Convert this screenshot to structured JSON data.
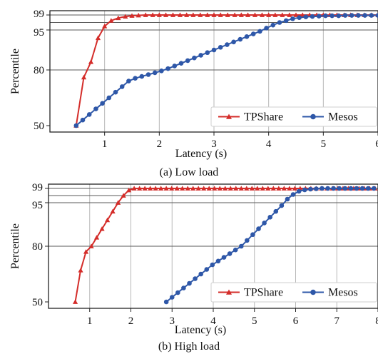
{
  "chart_data": [
    {
      "type": "line",
      "caption": "(a) Low load",
      "xlabel": "Latency (s)",
      "ylabel": "Percentile",
      "xlim": [
        0.0,
        6.0
      ],
      "ylim": [
        48,
        100
      ],
      "xticks": [
        1,
        2,
        3,
        4,
        5,
        6
      ],
      "yticks": [
        50,
        80,
        95,
        99
      ],
      "ref_lines": [
        99,
        97,
        95,
        80
      ],
      "grid": true,
      "legend_position": "lower right",
      "series": [
        {
          "name": "TPShare",
          "color": "#d42d2a",
          "marker": "triangle",
          "x": [
            0.48,
            0.62,
            0.75,
            0.88,
            1.0,
            1.12,
            1.25,
            1.38,
            1.5,
            1.62,
            1.75,
            1.88,
            2.0,
            2.12,
            2.25,
            2.38,
            2.5,
            2.62,
            2.75,
            2.88,
            3.0,
            3.12,
            3.25,
            3.38,
            3.5,
            3.62,
            3.75,
            3.88,
            4.0,
            4.12,
            4.25,
            4.38,
            4.5,
            4.62,
            4.75,
            4.88,
            5.0,
            5.12,
            5.25,
            5.38,
            5.5,
            5.62,
            5.75,
            5.88,
            6.0
          ],
          "y": [
            50,
            76,
            83,
            92,
            96,
            97.5,
            98.2,
            98.6,
            98.8,
            98.9,
            99,
            99,
            99,
            99,
            99,
            99,
            99,
            99,
            99,
            99,
            99,
            99,
            99,
            99,
            99,
            99,
            99,
            99,
            99,
            99,
            99,
            99,
            99,
            99,
            99,
            99,
            99,
            99,
            99,
            99,
            99,
            99,
            99,
            99,
            99
          ]
        },
        {
          "name": "Mesos",
          "color": "#2e57a8",
          "marker": "circle",
          "x": [
            0.48,
            0.6,
            0.72,
            0.84,
            0.96,
            1.08,
            1.2,
            1.32,
            1.44,
            1.56,
            1.68,
            1.8,
            1.92,
            2.04,
            2.16,
            2.28,
            2.4,
            2.52,
            2.64,
            2.76,
            2.88,
            3.0,
            3.12,
            3.24,
            3.36,
            3.48,
            3.6,
            3.72,
            3.84,
            3.96,
            4.08,
            4.2,
            4.32,
            4.44,
            4.56,
            4.68,
            4.8,
            4.92,
            5.04,
            5.16,
            5.28,
            5.4,
            5.52,
            5.64,
            5.76,
            5.88,
            6.0
          ],
          "y": [
            50,
            53,
            56,
            59,
            62,
            65,
            68,
            71,
            74,
            75.5,
            76.5,
            77.5,
            78.5,
            79.5,
            80.5,
            81.5,
            82.5,
            83.5,
            84.5,
            85.5,
            86.5,
            87.5,
            88.5,
            89.5,
            90.5,
            91.5,
            92.5,
            93.5,
            94.5,
            95.5,
            96.3,
            97,
            97.5,
            98,
            98.3,
            98.5,
            98.6,
            98.7,
            98.8,
            98.8,
            98.8,
            98.9,
            98.9,
            98.9,
            98.9,
            98.9,
            98.9
          ]
        }
      ]
    },
    {
      "type": "line",
      "caption": "(b) High load",
      "xlabel": "Latency (s)",
      "ylabel": "Percentile",
      "xlim": [
        0.0,
        8.0
      ],
      "ylim": [
        48,
        100
      ],
      "xticks": [
        1,
        2,
        3,
        4,
        5,
        6,
        7,
        8
      ],
      "yticks": [
        50,
        80,
        95,
        99
      ],
      "ref_lines": [
        99,
        97,
        95,
        80
      ],
      "grid": true,
      "legend_position": "lower right",
      "series": [
        {
          "name": "TPShare",
          "color": "#d42d2a",
          "marker": "triangle",
          "x": [
            0.65,
            0.78,
            0.91,
            1.04,
            1.17,
            1.3,
            1.43,
            1.56,
            1.69,
            1.82,
            1.95,
            2.08,
            2.21,
            2.34,
            2.47,
            2.6,
            2.73,
            2.86,
            2.99,
            3.12,
            3.25,
            3.38,
            3.51,
            3.64,
            3.77,
            3.9,
            4.03,
            4.16,
            4.29,
            4.42,
            4.55,
            4.68,
            4.81,
            4.94,
            5.07,
            5.2,
            5.33,
            5.46,
            5.59,
            5.72,
            5.85,
            5.98,
            6.11,
            6.24,
            6.37,
            6.5,
            6.63,
            6.76,
            6.89,
            7.02,
            7.15,
            7.28,
            7.41,
            7.54,
            7.67,
            7.8,
            7.93
          ],
          "y": [
            50,
            67,
            77,
            80,
            83,
            86,
            89,
            92,
            95,
            97,
            98.5,
            99,
            99,
            99,
            99,
            99,
            99,
            99,
            99,
            99,
            99,
            99,
            99,
            99,
            99,
            99,
            99,
            99,
            99,
            99,
            99,
            99,
            99,
            99,
            99,
            99,
            99,
            99,
            99,
            99,
            99,
            99,
            99,
            99,
            99,
            99,
            99,
            99,
            99,
            99,
            99,
            99,
            99,
            99,
            99,
            99,
            99
          ]
        },
        {
          "name": "Mesos",
          "color": "#2e57a8",
          "marker": "circle",
          "x": [
            2.86,
            3.0,
            3.14,
            3.28,
            3.42,
            3.56,
            3.7,
            3.84,
            3.98,
            4.12,
            4.26,
            4.4,
            4.54,
            4.68,
            4.82,
            4.96,
            5.1,
            5.24,
            5.38,
            5.52,
            5.66,
            5.8,
            5.94,
            6.08,
            6.22,
            6.36,
            6.5,
            6.64,
            6.78,
            6.92,
            7.06,
            7.2,
            7.34,
            7.48,
            7.62,
            7.76,
            7.9
          ],
          "y": [
            50,
            52.5,
            55,
            57.5,
            60,
            62.5,
            65,
            67.5,
            70,
            72,
            74,
            76,
            78,
            80,
            82,
            84,
            86,
            88,
            90,
            92,
            94,
            96,
            97.3,
            98.2,
            98.6,
            98.8,
            98.9,
            99,
            99,
            99,
            99,
            99,
            99,
            99,
            99,
            99,
            99
          ]
        }
      ]
    }
  ]
}
